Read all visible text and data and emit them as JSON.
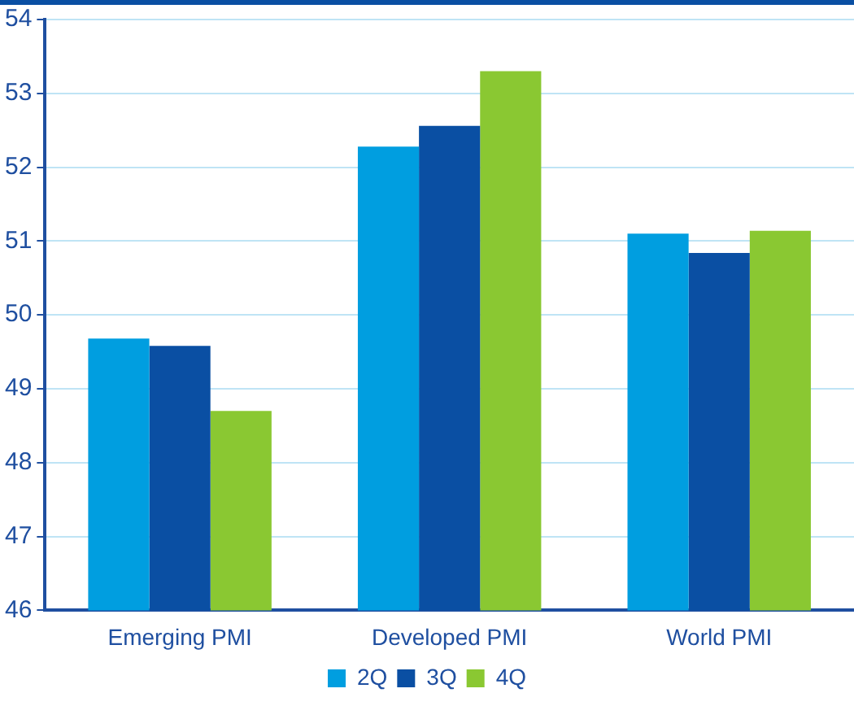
{
  "chart_data": {
    "type": "bar",
    "categories": [
      "Emerging PMI",
      "Developed PMI",
      "World PMI"
    ],
    "series": [
      {
        "name": "2Q",
        "color": "#009ee0",
        "values": [
          49.68,
          52.28,
          51.1
        ]
      },
      {
        "name": "3Q",
        "color": "#0a4fa3",
        "values": [
          49.58,
          52.56,
          50.84
        ]
      },
      {
        "name": "4Q",
        "color": "#8ac832",
        "values": [
          48.7,
          53.3,
          51.14
        ]
      }
    ],
    "ylim": [
      46,
      54
    ],
    "yticks": [
      46,
      47,
      48,
      49,
      50,
      51,
      52,
      53,
      54
    ],
    "grid": "y",
    "legend": "bottom"
  }
}
